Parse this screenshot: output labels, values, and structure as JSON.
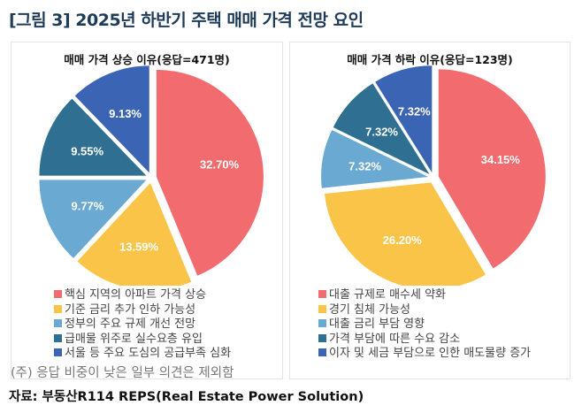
{
  "title": "[그림 3] 2025년 하반기 주택 매매 가격 전망 요인",
  "colors": [
    "#f26b6e",
    "#f9c448",
    "#6aaad2",
    "#2f6f91",
    "#3b64b4"
  ],
  "chart_data": [
    {
      "type": "pie",
      "title": "매매 가격 상승 이유(응답=471명)",
      "categories": [
        "핵심 지역의 아파트 가격 상승",
        "기준 금리 추가 인하 가능성",
        "정부의 주요 규제 개선 전망",
        "급매물 위주로 실수요층 유입",
        "서울 등 주요 도심의 공급부족 심화"
      ],
      "values": [
        32.7,
        13.59,
        9.77,
        9.55,
        9.13
      ],
      "labels": [
        "32.70%",
        "13.59%",
        "9.77%",
        "9.55%",
        "9.13%"
      ]
    },
    {
      "type": "pie",
      "title": "매매 가격 하락 이유(응답=123명)",
      "categories": [
        "대출 규제로 매수세 약화",
        "경기 침체 가능성",
        "대출 금리 부담 영향",
        "가격 부담에 따른 수요 감소",
        "이자 및 세금 부담으로 인한 매도물량 증가"
      ],
      "values": [
        34.15,
        26.2,
        7.32,
        7.32,
        7.32
      ],
      "labels": [
        "34.15%",
        "26.20%",
        "7.32%",
        "7.32%",
        "7.32%"
      ]
    }
  ],
  "note": "(주) 응답 비중이 낮은 일부 의견은 제외함",
  "source": "자료: 부동산R114 REPS(Real Estate Power Solution)"
}
